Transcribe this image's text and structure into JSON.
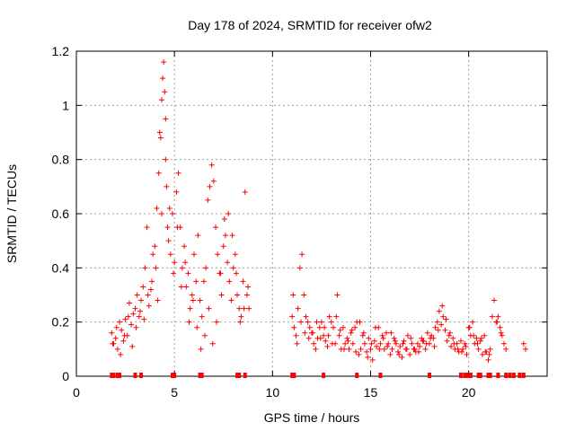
{
  "chart_data": {
    "type": "scatter",
    "title": "Day 178 of 2024, SRMTID for receiver ofw2",
    "xlabel": "GPS time / hours",
    "ylabel": "SRMTID / TECUs",
    "xlim": [
      0,
      24
    ],
    "ylim": [
      0,
      1.2
    ],
    "xticks": [
      "0",
      "5",
      "10",
      "15",
      "20"
    ],
    "xtick_values": [
      0,
      5,
      10,
      15,
      20
    ],
    "yticks": [
      "0",
      "0.2",
      "0.4",
      "0.6",
      "0.8",
      "1",
      "1.2"
    ],
    "ytick_values": [
      0,
      0.2,
      0.4,
      0.6,
      0.8,
      1.0,
      1.2
    ],
    "grid": true,
    "marker": "+",
    "color": "#ff0000",
    "series": [
      {
        "name": "SRMTID",
        "x": [
          1.8,
          1.9,
          2.0,
          2.1,
          2.2,
          2.3,
          2.4,
          2.5,
          2.6,
          2.7,
          2.8,
          2.9,
          3.0,
          3.1,
          3.2,
          3.3,
          3.4,
          3.5,
          3.6,
          3.7,
          3.8,
          3.9,
          4.0,
          4.1,
          4.2,
          4.25,
          4.3,
          4.35,
          4.4,
          4.45,
          4.5,
          4.55,
          4.6,
          4.65,
          4.7,
          4.8,
          4.9,
          5.0,
          5.1,
          5.2,
          5.3,
          5.4,
          5.5,
          5.6,
          5.7,
          5.8,
          5.9,
          6.0,
          6.1,
          6.2,
          6.3,
          6.4,
          6.5,
          6.6,
          6.7,
          6.8,
          6.9,
          7.0,
          7.1,
          7.2,
          7.3,
          7.4,
          7.5,
          7.6,
          7.7,
          7.8,
          7.9,
          8.0,
          8.1,
          8.2,
          8.3,
          8.4,
          8.5,
          8.6,
          8.7,
          8.8,
          1.85,
          2.05,
          2.25,
          2.45,
          2.65,
          2.85,
          3.05,
          3.25,
          3.45,
          3.65,
          3.85,
          4.05,
          4.15,
          4.35,
          4.55,
          4.75,
          4.95,
          5.15,
          5.35,
          5.55,
          5.75,
          5.95,
          6.15,
          6.35,
          6.55,
          6.75,
          6.95,
          7.15,
          7.35,
          7.55,
          7.75,
          7.95,
          8.15,
          8.35,
          8.55,
          8.75,
          11.0,
          11.1,
          11.2,
          11.3,
          11.4,
          11.5,
          11.6,
          11.7,
          11.8,
          11.9,
          12.0,
          12.1,
          12.2,
          12.3,
          12.4,
          12.5,
          12.6,
          12.7,
          12.8,
          12.9,
          13.0,
          13.1,
          13.2,
          13.3,
          13.4,
          13.5,
          13.6,
          13.7,
          13.8,
          13.9,
          14.0,
          14.1,
          14.2,
          14.3,
          14.4,
          14.5,
          14.6,
          14.7,
          14.8,
          14.9,
          15.0,
          15.1,
          15.2,
          15.3,
          15.4,
          15.5,
          15.6,
          15.7,
          15.8,
          15.9,
          16.0,
          16.1,
          16.2,
          16.3,
          16.4,
          16.5,
          16.6,
          16.7,
          16.8,
          16.9,
          17.0,
          17.1,
          17.2,
          17.3,
          17.4,
          17.5,
          17.6,
          17.7,
          17.8,
          17.9,
          18.0,
          18.1,
          18.2,
          18.3,
          18.4,
          18.5,
          18.6,
          18.7,
          18.8,
          18.9,
          19.0,
          19.1,
          19.2,
          19.3,
          19.4,
          19.5,
          19.6,
          19.7,
          19.8,
          19.9,
          20.0,
          20.1,
          20.2,
          20.3,
          20.4,
          20.5,
          20.6,
          20.7,
          20.8,
          20.9,
          21.0,
          21.1,
          21.2,
          21.3,
          21.4,
          21.5,
          21.6,
          21.7,
          21.8,
          21.9,
          22.8,
          22.9,
          11.05,
          11.25,
          11.45,
          11.65,
          11.85,
          12.05,
          12.25,
          12.45,
          12.65,
          12.85,
          13.05,
          13.25,
          13.45,
          13.65,
          13.85,
          14.05,
          14.25,
          14.45,
          14.65,
          14.85,
          15.05,
          15.25,
          15.45,
          15.65,
          15.85,
          16.05,
          16.25,
          16.45,
          16.65,
          16.85,
          17.05,
          17.25,
          17.45,
          17.65,
          17.85,
          18.05,
          18.25,
          18.45,
          18.65,
          18.85,
          19.05,
          19.25,
          19.45,
          19.65,
          19.85,
          20.05,
          20.25,
          20.45,
          20.65,
          20.85,
          21.05,
          21.45,
          21.65
        ],
        "y": [
          0.16,
          0.12,
          0.14,
          0.1,
          0.2,
          0.17,
          0.13,
          0.21,
          0.15,
          0.27,
          0.19,
          0.23,
          0.25,
          0.3,
          0.22,
          0.28,
          0.33,
          0.4,
          0.55,
          0.26,
          0.32,
          0.45,
          0.48,
          0.62,
          0.75,
          0.9,
          0.88,
          1.02,
          1.1,
          1.16,
          1.05,
          0.8,
          0.7,
          0.55,
          0.5,
          0.45,
          0.6,
          0.42,
          0.68,
          0.75,
          0.55,
          0.4,
          0.48,
          0.33,
          0.38,
          0.25,
          0.3,
          0.45,
          0.35,
          0.52,
          0.28,
          0.22,
          0.35,
          0.4,
          0.65,
          0.7,
          0.78,
          0.72,
          0.55,
          0.45,
          0.38,
          0.3,
          0.48,
          0.52,
          0.42,
          0.35,
          0.28,
          0.4,
          0.45,
          0.3,
          0.25,
          0.22,
          0.35,
          0.68,
          0.3,
          0.25,
          0.12,
          0.18,
          0.08,
          0.15,
          0.22,
          0.11,
          0.18,
          0.24,
          0.21,
          0.3,
          0.35,
          0.4,
          0.28,
          0.6,
          0.95,
          0.62,
          0.38,
          0.55,
          0.33,
          0.42,
          0.2,
          0.28,
          0.18,
          0.1,
          0.15,
          0.25,
          0.12,
          0.2,
          0.38,
          0.58,
          0.6,
          0.52,
          0.38,
          0.2,
          0.25,
          0.33,
          0.22,
          0.18,
          0.15,
          0.25,
          0.4,
          0.45,
          0.3,
          0.22,
          0.2,
          0.18,
          0.16,
          0.12,
          0.1,
          0.14,
          0.18,
          0.2,
          0.15,
          0.13,
          0.11,
          0.22,
          0.2,
          0.18,
          0.12,
          0.3,
          0.15,
          0.1,
          0.18,
          0.12,
          0.14,
          0.1,
          0.16,
          0.12,
          0.18,
          0.2,
          0.08,
          0.1,
          0.15,
          0.12,
          0.09,
          0.14,
          0.1,
          0.06,
          0.13,
          0.11,
          0.18,
          0.12,
          0.15,
          0.1,
          0.16,
          0.12,
          0.08,
          0.1,
          0.14,
          0.12,
          0.09,
          0.11,
          0.07,
          0.13,
          0.1,
          0.15,
          0.08,
          0.12,
          0.1,
          0.09,
          0.12,
          0.11,
          0.14,
          0.13,
          0.1,
          0.16,
          0.12,
          0.15,
          0.14,
          0.18,
          0.2,
          0.24,
          0.19,
          0.22,
          0.17,
          0.13,
          0.15,
          0.11,
          0.14,
          0.1,
          0.12,
          0.09,
          0.13,
          0.1,
          0.12,
          0.08,
          0.18,
          0.15,
          0.2,
          0.12,
          0.14,
          0.1,
          0.13,
          0.08,
          0.15,
          0.09,
          0.06,
          0.1,
          0.22,
          0.28,
          0.2,
          0.22,
          0.18,
          0.15,
          0.12,
          0.1,
          0.12,
          0.1,
          0.3,
          0.12,
          0.2,
          0.16,
          0.14,
          0.16,
          0.2,
          0.14,
          0.18,
          0.15,
          0.12,
          0.22,
          0.17,
          0.1,
          0.13,
          0.17,
          0.09,
          0.2,
          0.16,
          0.07,
          0.12,
          0.18,
          0.1,
          0.14,
          0.11,
          0.16,
          0.13,
          0.08,
          0.12,
          0.1,
          0.14,
          0.1,
          0.09,
          0.13,
          0.12,
          0.14,
          0.11,
          0.17,
          0.26,
          0.21,
          0.16,
          0.12,
          0.1,
          0.09,
          0.11,
          0.18,
          0.15,
          0.12,
          0.14,
          0.09,
          0.08,
          0.2,
          0.16
        ]
      }
    ],
    "baseline_markers_x": [
      1.8,
      1.9,
      2.1,
      2.2,
      3.0,
      3.3,
      4.9,
      5.0,
      6.3,
      6.4,
      8.2,
      8.3,
      8.6,
      11.0,
      11.1,
      12.6,
      14.3,
      15.5,
      18.0,
      19.6,
      19.8,
      19.9,
      20.1,
      20.5,
      20.6,
      21.0,
      21.1,
      21.5,
      21.9,
      22.1,
      22.3,
      22.6,
      22.8
    ]
  }
}
